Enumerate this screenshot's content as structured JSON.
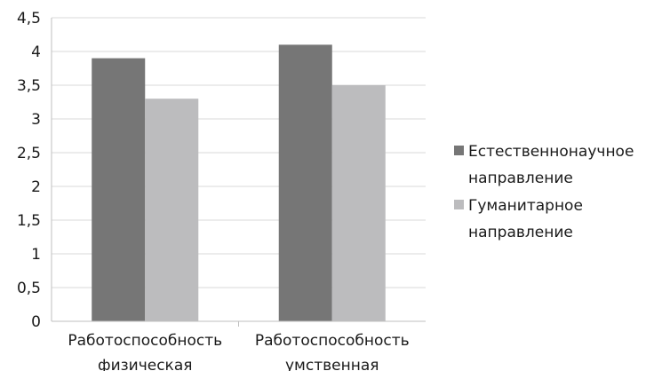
{
  "chart_data": {
    "type": "bar",
    "categories": [
      [
        "Работоспособность",
        "физическая"
      ],
      [
        "Работоспособность",
        "умственная"
      ]
    ],
    "series": [
      {
        "name": [
          "Естественнонаучное",
          "направление"
        ],
        "values": [
          3.9,
          4.1
        ],
        "color": "#767676"
      },
      {
        "name": [
          "Гуманитарное",
          "направление"
        ],
        "values": [
          3.3,
          3.5
        ],
        "color": "#bcbcbe"
      }
    ],
    "ylim": [
      0,
      4.5
    ],
    "yticks": [
      "0",
      "0,5",
      "1",
      "1,5",
      "2",
      "2,5",
      "3",
      "3,5",
      "4",
      "4,5"
    ],
    "grid": true,
    "legend": "right",
    "gridline_color": "#d9d9d9",
    "axis_color": "#bfbfbf"
  }
}
